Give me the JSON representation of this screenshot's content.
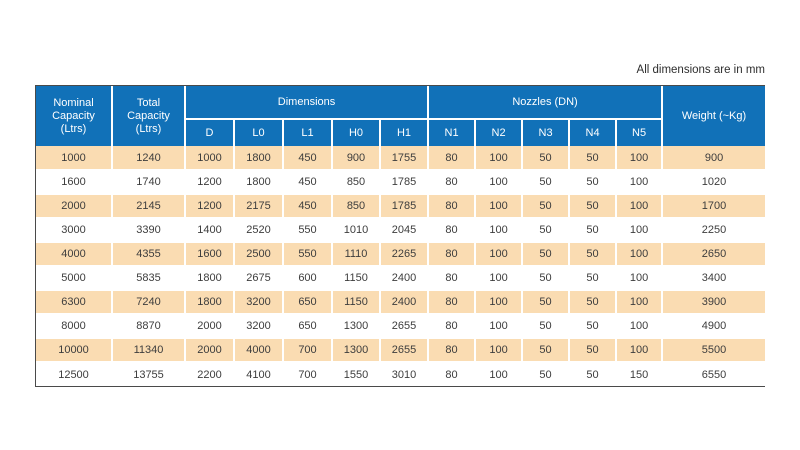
{
  "note": "All dimensions are in mm",
  "table": {
    "header": {
      "nominal": "Nominal Capacity (Ltrs)",
      "total": "Total Capacity (Ltrs)",
      "dimensions_group": "Dimensions",
      "nozzles_group": "Nozzles (DN)",
      "weight": "Weight (~Kg)",
      "dimension_cols": [
        "D",
        "L0",
        "L1",
        "H0",
        "H1"
      ],
      "nozzle_cols": [
        "N1",
        "N2",
        "N3",
        "N4",
        "N5"
      ]
    },
    "rows": [
      [
        1000,
        1240,
        1000,
        1800,
        450,
        900,
        1755,
        80,
        100,
        50,
        50,
        100,
        900
      ],
      [
        1600,
        1740,
        1200,
        1800,
        450,
        850,
        1785,
        80,
        100,
        50,
        50,
        100,
        1020
      ],
      [
        2000,
        2145,
        1200,
        2175,
        450,
        850,
        1785,
        80,
        100,
        50,
        50,
        100,
        1700
      ],
      [
        3000,
        3390,
        1400,
        2520,
        550,
        1010,
        2045,
        80,
        100,
        50,
        50,
        100,
        2250
      ],
      [
        4000,
        4355,
        1600,
        2500,
        550,
        1110,
        2265,
        80,
        100,
        50,
        50,
        100,
        2650
      ],
      [
        5000,
        5835,
        1800,
        2675,
        600,
        1150,
        2400,
        80,
        100,
        50,
        50,
        100,
        3400
      ],
      [
        6300,
        7240,
        1800,
        3200,
        650,
        1150,
        2400,
        80,
        100,
        50,
        50,
        100,
        3900
      ],
      [
        8000,
        8870,
        2000,
        3200,
        650,
        1300,
        2655,
        80,
        100,
        50,
        50,
        100,
        4900
      ],
      [
        10000,
        11340,
        2000,
        4000,
        700,
        1300,
        2655,
        80,
        100,
        50,
        50,
        100,
        5500
      ],
      [
        12500,
        13755,
        2200,
        4100,
        700,
        1550,
        3010,
        80,
        100,
        50,
        50,
        150,
        6550
      ]
    ],
    "colors": {
      "header_bg": "#1171b8",
      "header_text": "#ffffff",
      "row_alt_bg": "#fadcb2",
      "row_bg": "#ffffff",
      "body_text": "#3d3d3d",
      "border": "#4a4a4a"
    }
  }
}
